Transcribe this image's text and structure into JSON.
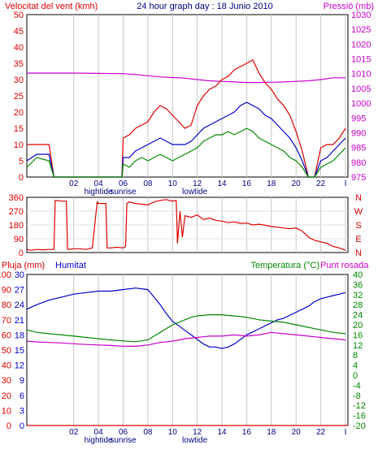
{
  "chart_data": [
    {
      "type": "line",
      "title": "24 hour graph day : 18 Junio 2010",
      "left_label": "Velocitat del vent (kmh)",
      "right_label": "Pressió (mb)",
      "ylim_left": [
        0,
        50
      ],
      "ylim_right": [
        975,
        1030
      ],
      "left_ticks": [
        "0",
        "5",
        "10",
        "15",
        "20",
        "25",
        "30",
        "35",
        "40",
        "45",
        "50"
      ],
      "right_ticks": [
        "975",
        "980",
        "985",
        "990",
        "995",
        "1000",
        "1005",
        "1010",
        "1015",
        "1020",
        "1025",
        "1030"
      ],
      "x_ticks": [
        "02",
        "04",
        "06",
        "08",
        "10",
        "12",
        "14",
        "16",
        "18",
        "20",
        "22",
        "I"
      ],
      "x_ticks_at": [
        2,
        4,
        6,
        8,
        10,
        12,
        14,
        16,
        18,
        20,
        22,
        24
      ],
      "xlim": [
        -1.8,
        24.2
      ],
      "grid": true,
      "annotations": [
        {
          "hour": 4,
          "text": "hightide"
        },
        {
          "hour": 6,
          "text": "sunrise"
        },
        {
          "hour": 11.8,
          "text": "lowtide"
        }
      ],
      "series": [
        {
          "axis": "right",
          "color": "#cc00cc",
          "x": [
            -1.8,
            0,
            2,
            4,
            6,
            7,
            8,
            9,
            10,
            11,
            12,
            13,
            14,
            15,
            16,
            17,
            18,
            19,
            20,
            21,
            22,
            23,
            24
          ],
          "values": [
            1010.2,
            1010.2,
            1010.2,
            1010.1,
            1010,
            1009.7,
            1009.3,
            1008.9,
            1008.7,
            1008.5,
            1008,
            1007.6,
            1007.4,
            1007.2,
            1007,
            1007,
            1007.1,
            1007.2,
            1007.4,
            1007.6,
            1008,
            1008.6,
            1008.6
          ]
        },
        {
          "axis": "left",
          "color": "#dd0000",
          "x": [
            -1.8,
            -1,
            0,
            0.4,
            1,
            2,
            3,
            4,
            5,
            5.9,
            6,
            6.5,
            7,
            7.5,
            8,
            8.5,
            9,
            9.5,
            10,
            10.5,
            11,
            11.5,
            12,
            12.5,
            13,
            13.5,
            14,
            14.5,
            15,
            15.5,
            16,
            16.5,
            17,
            17.5,
            18,
            18.5,
            19,
            19.5,
            20,
            20.5,
            21,
            21.5,
            22,
            22.5,
            23,
            23.5,
            24
          ],
          "values": [
            10,
            10,
            10,
            0,
            0,
            0,
            0,
            0,
            0,
            0,
            12,
            13,
            15,
            16,
            17,
            20,
            22,
            21,
            19,
            17,
            15,
            16,
            22,
            25,
            27,
            28,
            30,
            31,
            33,
            34,
            35,
            36,
            32,
            29,
            27,
            24,
            22,
            19,
            14,
            8,
            0,
            0,
            9,
            10,
            10,
            12,
            15
          ]
        },
        {
          "axis": "left",
          "color": "#0000cc",
          "x": [
            -1.8,
            -1,
            0,
            0.4,
            1,
            2,
            3,
            4,
            5,
            5.9,
            6,
            6.5,
            7,
            7.5,
            8,
            8.5,
            9,
            9.5,
            10,
            10.5,
            11,
            11.5,
            12,
            12.5,
            13,
            13.5,
            14,
            14.5,
            15,
            15.5,
            16,
            16.5,
            17,
            17.5,
            18,
            18.5,
            19,
            19.5,
            20,
            20.5,
            21,
            21.5,
            22,
            22.5,
            23,
            23.5,
            24
          ],
          "values": [
            5,
            7,
            7,
            0,
            0,
            0,
            0,
            0,
            0,
            0,
            6,
            6,
            8,
            9,
            10,
            11,
            12,
            11,
            10,
            10,
            10,
            11,
            13,
            15,
            16,
            17,
            18,
            19,
            20,
            22,
            23,
            22,
            21,
            19,
            18,
            16,
            14,
            12,
            9,
            5,
            0,
            0,
            5,
            6,
            8,
            10,
            12
          ]
        },
        {
          "axis": "left",
          "color": "#008800",
          "x": [
            -1.8,
            -1,
            0,
            0.4,
            1,
            2,
            3,
            4,
            5,
            5.9,
            6,
            6.5,
            7,
            7.5,
            8,
            8.5,
            9,
            9.5,
            10,
            10.5,
            11,
            11.5,
            12,
            12.5,
            13,
            13.5,
            14,
            14.5,
            15,
            15.5,
            16,
            16.5,
            17,
            17.5,
            18,
            18.5,
            19,
            19.5,
            20,
            20.5,
            21,
            21.5,
            22,
            22.5,
            23,
            23.5,
            24
          ],
          "values": [
            3,
            6,
            5,
            0,
            0,
            0,
            0,
            0,
            0,
            0,
            4,
            3,
            5,
            6,
            5,
            6,
            7,
            6,
            5,
            6,
            7,
            8,
            9,
            11,
            12,
            13,
            13,
            14,
            13,
            14,
            15,
            14,
            12,
            11,
            10,
            9,
            8,
            6,
            5,
            3,
            0,
            0,
            3,
            4,
            5,
            7,
            9
          ]
        }
      ]
    },
    {
      "type": "line",
      "left_label_ticks": [
        "0",
        "90",
        "180",
        "270",
        "360"
      ],
      "ylim": [
        0,
        360
      ],
      "right_letters": [
        "N",
        "W",
        "S",
        "E",
        "N"
      ],
      "grid": true,
      "series": [
        {
          "color": "#dd0000",
          "x": [
            -1.8,
            -1.5,
            -1,
            -0.5,
            0,
            0.4,
            0.5,
            1,
            1.4,
            1.5,
            2,
            2.5,
            3,
            3.5,
            3.9,
            4,
            4.6,
            4.7,
            5,
            5.5,
            6,
            6.2,
            6.3,
            6.5,
            7,
            7.5,
            8,
            8.5,
            9,
            9.5,
            10,
            10.3,
            10.4,
            10.6,
            10.8,
            11,
            11.5,
            12,
            12.5,
            13,
            13.5,
            14,
            14.5,
            15,
            15.5,
            16,
            16.5,
            17,
            17.5,
            18,
            18.5,
            19,
            19.5,
            20,
            20.5,
            21,
            21.5,
            22,
            22.5,
            23,
            23.5,
            24
          ],
          "values": [
            20,
            15,
            20,
            18,
            20,
            20,
            340,
            335,
            335,
            20,
            25,
            25,
            20,
            30,
            330,
            320,
            320,
            30,
            30,
            35,
            30,
            40,
            320,
            330,
            320,
            315,
            310,
            330,
            340,
            345,
            335,
            340,
            60,
            270,
            100,
            240,
            230,
            245,
            215,
            225,
            210,
            205,
            195,
            200,
            190,
            192,
            180,
            185,
            178,
            170,
            165,
            160,
            155,
            160,
            140,
            100,
            80,
            70,
            60,
            40,
            30,
            15
          ]
        }
      ]
    },
    {
      "type": "line",
      "left_label": "Pluja (mm)",
      "left_label2": "Humitat",
      "right_label": "Temperatura (°C)",
      "right_label2": "Punt rosada",
      "pluja_ticks": [
        "0",
        "10",
        "20",
        "30",
        "40",
        "50",
        "60",
        "70",
        "80",
        "90",
        "100"
      ],
      "humitat_ticks": [
        "0",
        "3",
        "6",
        "9",
        "12",
        "15",
        "18",
        "21",
        "24",
        "27",
        "30"
      ],
      "right_ticks": [
        "-20",
        "-16",
        "-12",
        "-8",
        "-4",
        "0",
        "4",
        "8",
        "12",
        "16",
        "20",
        "24",
        "28",
        "32",
        "36",
        "40"
      ],
      "ylim_left": [
        0,
        100
      ],
      "ylim_right": [
        -20,
        40
      ],
      "x_ticks": [
        "02",
        "04",
        "06",
        "08",
        "10",
        "12",
        "14",
        "16",
        "18",
        "20",
        "22",
        "I"
      ],
      "x_ticks_at": [
        2,
        4,
        6,
        8,
        10,
        12,
        14,
        16,
        18,
        20,
        22,
        24
      ],
      "xlim": [
        -1.8,
        24.2
      ],
      "grid": true,
      "annotations": [
        {
          "hour": 4,
          "text": "hightide"
        },
        {
          "hour": 6,
          "text": "sunrise"
        },
        {
          "hour": 11.8,
          "text": "lowtide"
        }
      ],
      "series": [
        {
          "axis": "left",
          "color": "#dd0000",
          "name": "Pluja",
          "x": [
            -1.8,
            24.2
          ],
          "values": [
            0,
            0
          ]
        },
        {
          "axis": "left",
          "color": "#0000cc",
          "name": "Humitat",
          "x": [
            -1.8,
            -1,
            0,
            1,
            2,
            3,
            4,
            5,
            6,
            7,
            8,
            8.5,
            9,
            9.5,
            10,
            10.5,
            11,
            11.5,
            12,
            12.5,
            13,
            13.5,
            14,
            14.5,
            15,
            15.5,
            16,
            16.5,
            17,
            17.5,
            18,
            18.5,
            19,
            19.5,
            20,
            20.5,
            21,
            21.5,
            22,
            22.5,
            23,
            23.5,
            24
          ],
          "values": [
            77,
            80,
            83,
            85,
            87,
            88,
            89,
            89,
            90,
            91,
            90,
            85,
            80,
            74,
            69,
            66,
            63,
            60,
            57,
            54,
            52,
            52,
            51,
            52,
            54,
            57,
            60,
            62,
            64,
            66,
            68,
            70,
            71,
            73,
            75,
            77,
            79,
            82,
            84,
            85,
            86,
            87,
            88
          ]
        },
        {
          "axis": "right",
          "color": "#008800",
          "name": "Temperatura",
          "x": [
            -1.8,
            -1,
            0,
            1,
            2,
            3,
            4,
            5,
            6,
            7,
            8,
            8.5,
            9,
            9.5,
            10,
            10.5,
            11,
            11.5,
            12,
            13,
            14,
            15,
            16,
            17,
            18,
            19,
            20,
            21,
            22,
            23,
            24
          ],
          "values": [
            18,
            17,
            16.5,
            16,
            15.5,
            15,
            14.5,
            14,
            13.6,
            13.3,
            14,
            15.5,
            17,
            18.5,
            20,
            21,
            22,
            23,
            23.5,
            24,
            24,
            23.5,
            23,
            22,
            21.5,
            21,
            20,
            19,
            18,
            17,
            16.5
          ]
        },
        {
          "axis": "right",
          "color": "#cc00cc",
          "name": "Punt rosada",
          "x": [
            -1.8,
            -1,
            0,
            1,
            2,
            3,
            4,
            5,
            6,
            7,
            8,
            9,
            10,
            11,
            12,
            13,
            14,
            15,
            16,
            17,
            18,
            19,
            20,
            21,
            22,
            23,
            24
          ],
          "values": [
            13.5,
            13.2,
            13,
            12.8,
            12.5,
            12.2,
            12,
            11.8,
            11.5,
            11.5,
            12,
            13,
            13.5,
            14.5,
            15,
            15.5,
            15.5,
            16,
            15.5,
            16,
            17,
            16.5,
            16,
            15.5,
            15,
            14.5,
            14
          ]
        }
      ]
    }
  ]
}
